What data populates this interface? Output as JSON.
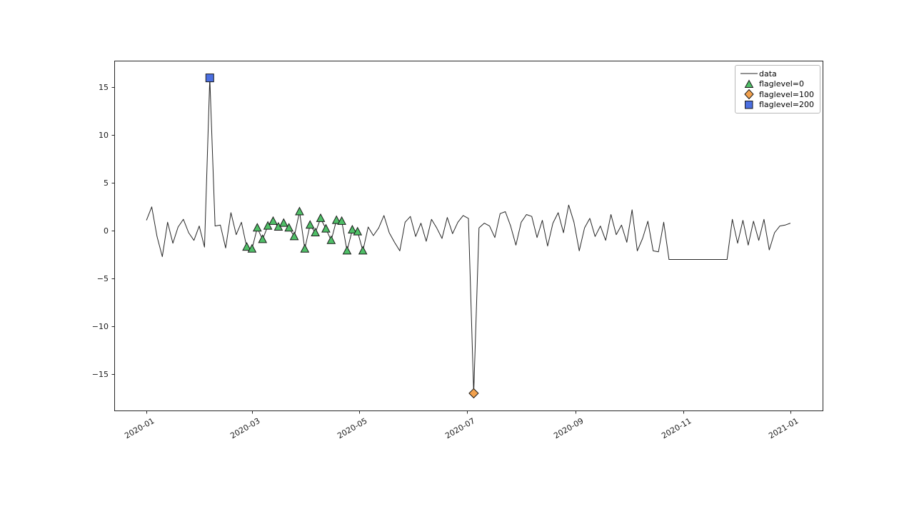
{
  "figure": {
    "background": "#ffffff",
    "axes_color": "#262626",
    "tick_label_color": "#1a1a1a",
    "legend_border_color": "#b8b8b8"
  },
  "chart_data": {
    "type": "line",
    "title": "",
    "xlabel": "",
    "ylabel": "",
    "grid": false,
    "legend_position": "upper right",
    "series_name": "data",
    "x_start_date": "2020-01-01",
    "x_step_days": 3,
    "line_color": "#262626",
    "marker_edge_color": "#1a1a1a",
    "xlim_days": [
      -18.3,
      384.3
    ],
    "ylim": [
      -18.8,
      17.8
    ],
    "y_values": [
      1.1,
      2.5,
      -0.6,
      -2.7,
      0.9,
      -1.3,
      0.4,
      1.2,
      -0.2,
      -1.0,
      0.5,
      -1.7,
      16,
      0.5,
      0.6,
      -1.8,
      1.9,
      -0.4,
      0.9,
      -1.7,
      -1.9,
      0.3,
      -0.9,
      0.5,
      1.0,
      0.4,
      0.8,
      0.3,
      -0.6,
      2.0,
      -1.9,
      0.6,
      -0.2,
      1.3,
      0.2,
      -1.0,
      1.1,
      1.0,
      -2.1,
      0.1,
      -0.1,
      -2.1,
      0.4,
      -0.5,
      0.3,
      1.6,
      -0.2,
      -1.2,
      -2.1,
      0.9,
      1.5,
      -0.6,
      0.8,
      -1.1,
      1.2,
      0.3,
      -0.8,
      1.4,
      -0.3,
      0.9,
      1.6,
      1.3,
      -17,
      0.3,
      0.8,
      0.5,
      -0.7,
      1.8,
      2.0,
      0.5,
      -1.5,
      0.9,
      1.7,
      1.5,
      -0.7,
      1.1,
      -1.6,
      0.8,
      1.9,
      -0.2,
      2.7,
      0.9,
      -2.1,
      0.3,
      1.3,
      -0.6,
      0.5,
      -1.0,
      1.7,
      -0.4,
      0.6,
      -1.2,
      2.2,
      -2.1,
      -0.8,
      1.0,
      -2.1,
      -2.2,
      0.9,
      -3,
      -3,
      -3,
      -3,
      -3,
      -3,
      -3,
      -3,
      -3,
      -3,
      -3,
      -3,
      1.2,
      -1.3,
      1.1,
      -1.5,
      1.0,
      -1.0,
      1.2,
      -2.0,
      -0.2,
      0.5,
      0.6,
      0.8
    ],
    "flag_markers": [
      {
        "label": "flaglevel=0",
        "marker": "triangle",
        "color": "#4FBF67",
        "indices": [
          19,
          20,
          21,
          22,
          23,
          24,
          25,
          26,
          27,
          28,
          29,
          30,
          31,
          32,
          33,
          34,
          35,
          36,
          37,
          38,
          39,
          40,
          41
        ]
      },
      {
        "label": "flaglevel=100",
        "marker": "diamond",
        "color": "#F2A14D",
        "indices": [
          62
        ]
      },
      {
        "label": "flaglevel=200",
        "marker": "square",
        "color": "#4B6FE1",
        "indices": [
          12
        ]
      }
    ],
    "xticks": {
      "day_offsets": [
        0,
        60,
        121,
        182,
        244,
        305,
        366
      ],
      "labels": [
        "2020-01",
        "2020-03",
        "2020-05",
        "2020-07",
        "2020-09",
        "2020-11",
        "2021-01"
      ]
    },
    "yticks": {
      "values": [
        15,
        10,
        5,
        0,
        -5,
        -10,
        -15
      ],
      "labels": [
        "15",
        "10",
        "5",
        "0",
        "−5",
        "−10",
        "−15"
      ]
    },
    "legend": {
      "items": [
        {
          "label": "data",
          "sample": "line"
        },
        {
          "label": "flaglevel=0",
          "sample": "triangle"
        },
        {
          "label": "flaglevel=100",
          "sample": "diamond"
        },
        {
          "label": "flaglevel=200",
          "sample": "square"
        }
      ]
    }
  }
}
